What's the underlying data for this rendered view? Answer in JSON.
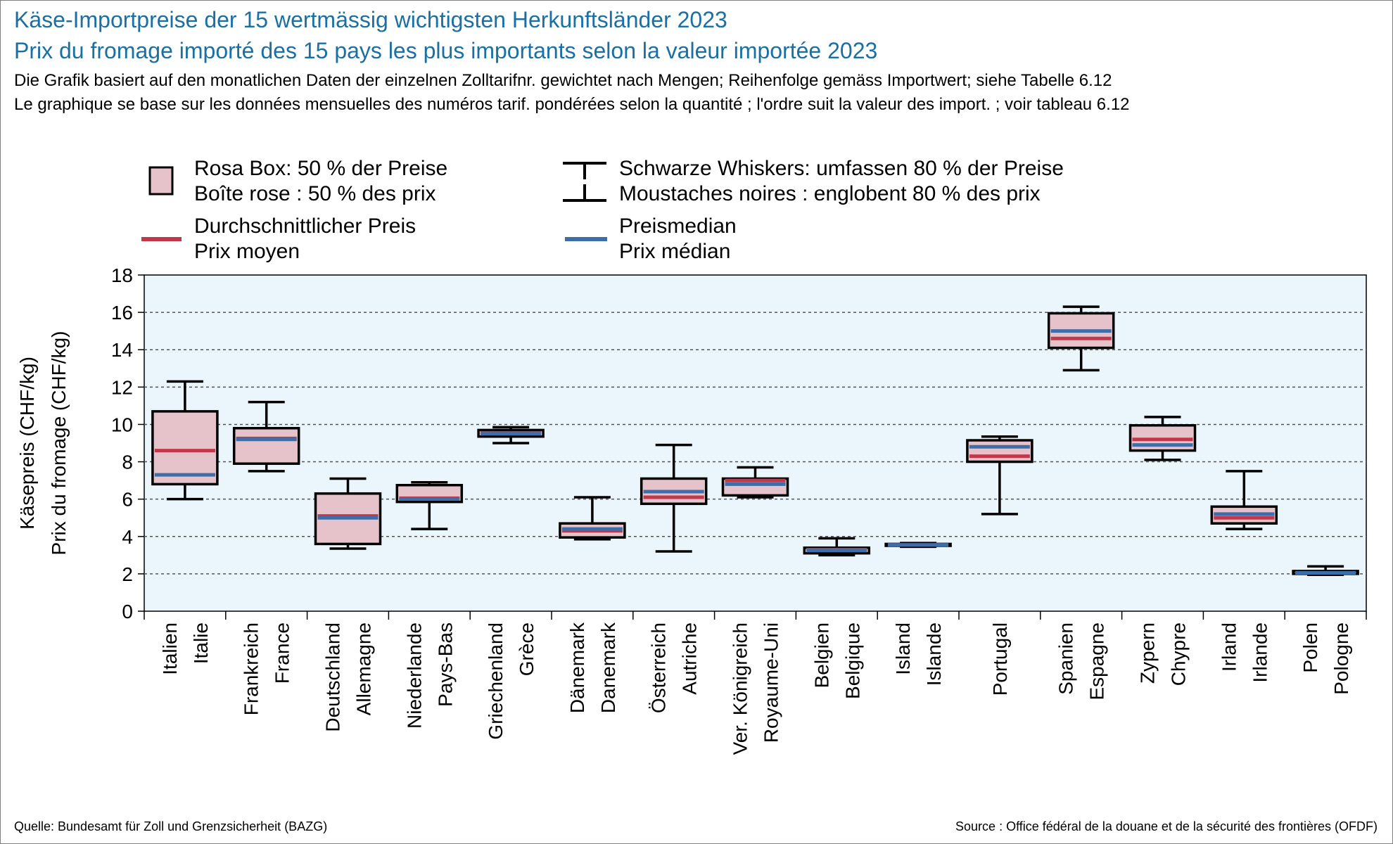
{
  "title": {
    "line1": "Käse-Importpreise der 15 wertmässig wichtigsten Herkunftsländer 2023",
    "line2": "Prix du fromage importé des 15 pays les plus importants selon la valeur importée 2023"
  },
  "subtitle": {
    "line1": "Die Grafik basiert auf den monatlichen Daten der einzelnen Zolltarifnr. gewichtet nach Mengen; Reihenfolge gemäss Importwert; siehe Tabelle 6.12",
    "line2": "Le graphique se base sur les données mensuelles des numéros tarif. pondérées selon la quantité ; l'ordre suit la valeur des import. ; voir tableau 6.12"
  },
  "legend": {
    "box": [
      "Rosa Box: 50 % der Preise",
      "Boîte rose : 50 % des prix"
    ],
    "whiskers": [
      "Schwarze Whiskers: umfassen 80 % der Preise",
      "Moustaches noires : englobent 80 % des prix"
    ],
    "mean": [
      "Durchschnittlicher Preis",
      "Prix moyen"
    ],
    "median": [
      "Preismedian",
      "Prix médian"
    ]
  },
  "source": {
    "left": "Quelle: Bundesamt für Zoll und Grenzsicherheit (BAZG)",
    "right": "Source : Office fédéral de la douane et de la sécurité des frontières (OFDF)"
  },
  "colors": {
    "title": "#1a6fa3",
    "box_fill": "#e6c3cb",
    "mean": "#c0394b",
    "median": "#3d6ea8",
    "plot_bg": "#eaf5fc"
  },
  "chart_data": {
    "type": "boxplot",
    "ylabel": [
      "Käsepreis (CHF/kg)",
      "Prix du fromage (CHF/kg)"
    ],
    "ylim": [
      0,
      18
    ],
    "yticks": [
      0,
      2,
      4,
      6,
      8,
      10,
      12,
      14,
      16,
      18
    ],
    "grid": "horizontal dashed",
    "categories": [
      [
        "Italien",
        "Italie"
      ],
      [
        "Frankreich",
        "France"
      ],
      [
        "Deutschland",
        "Allemagne"
      ],
      [
        "Niederlande",
        "Pays-Bas"
      ],
      [
        "Griechenland",
        "Grèce"
      ],
      [
        "Dänemark",
        "Danemark"
      ],
      [
        "Österreich",
        "Autriche"
      ],
      [
        "Ver. Königreich",
        "Royaume-Uni"
      ],
      [
        "Belgien",
        "Belgique"
      ],
      [
        "Island",
        "Islande"
      ],
      [
        "Portugal"
      ],
      [
        "Spanien",
        "Espagne"
      ],
      [
        "Zypern",
        "Chypre"
      ],
      [
        "Irland",
        "Irlande"
      ],
      [
        "Polen",
        "Pologne"
      ]
    ],
    "series": [
      {
        "whisker_low": 6.0,
        "q1": 6.8,
        "median": 7.3,
        "mean": 8.6,
        "q3": 10.7,
        "whisker_high": 12.3
      },
      {
        "whisker_low": 7.5,
        "q1": 7.9,
        "median": 9.2,
        "mean": 9.25,
        "q3": 9.8,
        "whisker_high": 11.2
      },
      {
        "whisker_low": 3.35,
        "q1": 3.6,
        "median": 5.0,
        "mean": 5.1,
        "q3": 6.3,
        "whisker_high": 7.1
      },
      {
        "whisker_low": 4.4,
        "q1": 5.85,
        "median": 6.0,
        "mean": 6.05,
        "q3": 6.75,
        "whisker_high": 6.9
      },
      {
        "whisker_low": 9.0,
        "q1": 9.35,
        "median": 9.5,
        "mean": 9.55,
        "q3": 9.7,
        "whisker_high": 9.85
      },
      {
        "whisker_low": 3.85,
        "q1": 3.95,
        "median": 4.4,
        "mean": 4.3,
        "q3": 4.7,
        "whisker_high": 6.1
      },
      {
        "whisker_low": 3.2,
        "q1": 5.75,
        "median": 6.4,
        "mean": 6.1,
        "q3": 7.1,
        "whisker_high": 8.9
      },
      {
        "whisker_low": 6.1,
        "q1": 6.2,
        "median": 6.8,
        "mean": 7.0,
        "q3": 7.1,
        "whisker_high": 7.7
      },
      {
        "whisker_low": 3.0,
        "q1": 3.1,
        "median": 3.25,
        "mean": 3.3,
        "q3": 3.4,
        "whisker_high": 3.9
      },
      {
        "whisker_low": 3.45,
        "q1": 3.5,
        "median": 3.55,
        "mean": 3.55,
        "q3": 3.6,
        "whisker_high": 3.65
      },
      {
        "whisker_low": 5.2,
        "q1": 8.0,
        "median": 8.8,
        "mean": 8.3,
        "q3": 9.15,
        "whisker_high": 9.35
      },
      {
        "whisker_low": 12.9,
        "q1": 14.1,
        "median": 15.0,
        "mean": 14.6,
        "q3": 15.95,
        "whisker_high": 16.3
      },
      {
        "whisker_low": 8.1,
        "q1": 8.6,
        "median": 8.9,
        "mean": 9.2,
        "q3": 9.95,
        "whisker_high": 10.4
      },
      {
        "whisker_low": 4.4,
        "q1": 4.7,
        "median": 5.2,
        "mean": 5.0,
        "q3": 5.6,
        "whisker_high": 7.5
      },
      {
        "whisker_low": 1.95,
        "q1": 2.0,
        "median": 2.05,
        "mean": 2.05,
        "q3": 2.15,
        "whisker_high": 2.4
      }
    ]
  }
}
